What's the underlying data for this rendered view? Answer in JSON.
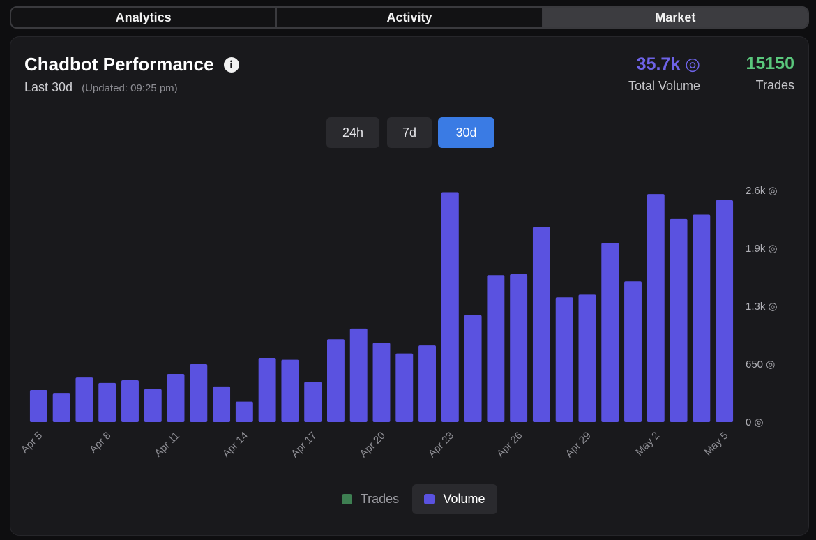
{
  "tabs": [
    {
      "label": "Analytics",
      "active": false
    },
    {
      "label": "Activity",
      "active": false
    },
    {
      "label": "Market",
      "active": true
    }
  ],
  "header": {
    "title": "Chadbot Performance",
    "period": "Last 30d",
    "updated": "(Updated: 09:25 pm)",
    "total_volume_value": "35.7k ◎",
    "total_volume_label": "Total Volume",
    "trades_value": "15150",
    "trades_label": "Trades"
  },
  "ranges": [
    {
      "label": "24h",
      "active": false
    },
    {
      "label": "7d",
      "active": false
    },
    {
      "label": "30d",
      "active": true
    }
  ],
  "legend": {
    "trades_label": "Trades",
    "volume_label": "Volume"
  },
  "colors": {
    "volume_bar": "#5a52e0",
    "volume_text": "#6e63e8",
    "trades_text": "#5ac77c",
    "trades_swatch": "#3e7f52",
    "active_range": "#3a7be4"
  },
  "chart_data": {
    "type": "bar",
    "title": "",
    "xlabel": "",
    "ylabel": "",
    "categories": [
      "Apr 5",
      "Apr 6",
      "Apr 7",
      "Apr 8",
      "Apr 9",
      "Apr 10",
      "Apr 11",
      "Apr 12",
      "Apr 13",
      "Apr 14",
      "Apr 15",
      "Apr 16",
      "Apr 17",
      "Apr 18",
      "Apr 19",
      "Apr 20",
      "Apr 21",
      "Apr 22",
      "Apr 23",
      "Apr 24",
      "Apr 25",
      "Apr 26",
      "Apr 27",
      "Apr 28",
      "Apr 29",
      "Apr 30",
      "May 1",
      "May 2",
      "May 3",
      "May 4",
      "May 5"
    ],
    "x_tick_labels": [
      "Apr 5",
      "Apr 8",
      "Apr 11",
      "Apr 14",
      "Apr 17",
      "Apr 20",
      "Apr 23",
      "Apr 26",
      "Apr 29",
      "May 2",
      "May 5"
    ],
    "series": [
      {
        "name": "Volume",
        "values": [
          360,
          320,
          500,
          440,
          470,
          370,
          540,
          650,
          400,
          230,
          720,
          700,
          450,
          930,
          1050,
          890,
          770,
          860,
          2580,
          1200,
          1650,
          1660,
          2190,
          1400,
          1430,
          2010,
          1580,
          2560,
          2280,
          2330,
          2490
        ]
      }
    ],
    "y_ticks": [
      0,
      650,
      1300,
      1950,
      2600
    ],
    "y_tick_labels": [
      "0 ◎",
      "650 ◎",
      "1.3k ◎",
      "1.9k ◎",
      "2.6k ◎"
    ],
    "ylim": [
      0,
      2600
    ],
    "y_axis_position": "right",
    "grid": false,
    "legend_position": "bottom-center"
  }
}
